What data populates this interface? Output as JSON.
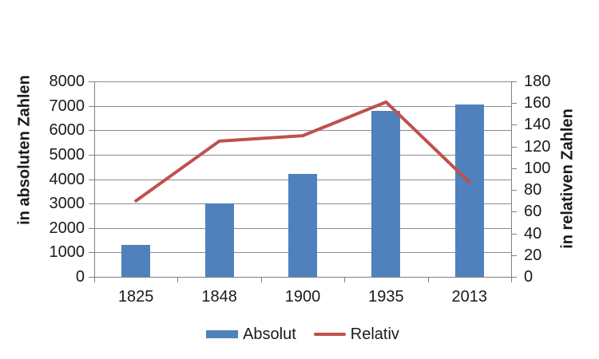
{
  "chart_data": {
    "type": "combo-bar-line",
    "categories": [
      "1825",
      "1848",
      "1900",
      "1935",
      "2013"
    ],
    "series": [
      {
        "name": "Absolut",
        "type": "bar",
        "axis": "left",
        "color": "#4F81BD",
        "values": [
          1300,
          3000,
          4200,
          6800,
          7050
        ]
      },
      {
        "name": "Relativ",
        "type": "line",
        "axis": "right",
        "color": "#C0504D",
        "values": [
          70,
          125,
          130,
          161,
          87
        ]
      }
    ],
    "left_axis": {
      "title": "in absoluten Zahlen",
      "min": 0,
      "max": 8000,
      "step": 1000
    },
    "right_axis": {
      "title": "in relativen Zahlen",
      "min": 0,
      "max": 180,
      "step": 20
    },
    "legend": {
      "position": "bottom"
    },
    "grid": true,
    "colors": {
      "gridline": "#8C8C8C",
      "axis": "#808080",
      "text": "#1A1A1A",
      "background": "#FFFFFF"
    }
  }
}
